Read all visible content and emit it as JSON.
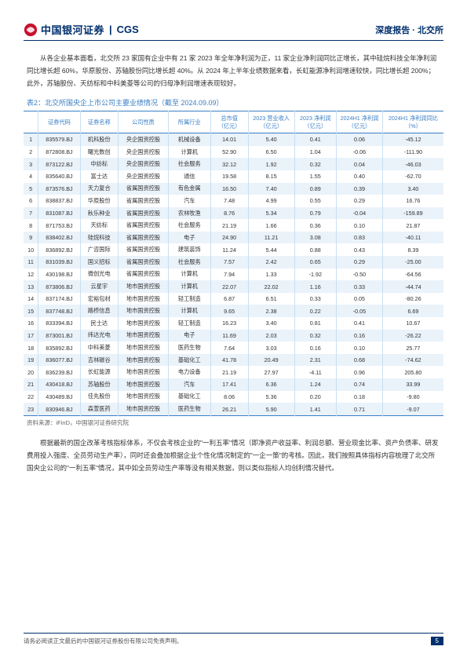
{
  "header": {
    "logo_cn": "中国银河证券",
    "logo_en": "CGS",
    "report_type": "深度报告",
    "sep": "·",
    "section": "北交所"
  },
  "paragraphs": {
    "intro": "从各企业基本面看，北交所 23 家国有企业中有 21 家 2023 年全年净利润为正，11 家企业净利润同比正增长，其中硅烷科技全年净利润同比增长超 60%，华原股份、苏轴股份同比增长超 40%。从 2024 年上半年业绩数据来看，长虹能源净利润增速较快，同比增长超 200%；此外，苏轴股份、天纺标和中科美菱等公司的归母净利润增速表现较好。",
    "post": "根据最新的国企改革考核指标体系，不仅会考核企业的\"一利五率\"情况（即净资产收益率、利润总额、营业现金比率、资产负债率、研发费用投入强度、全员劳动生产率），同时还会叠加根据企业个性化情况制定的\"一企一策\"的考核。因此，我们按照具体指标内容梳理了北交所国央企公司的\"一利五率\"情况，其中如全员劳动生产率等没有相关数据，则以类似指标人均创利情况替代。"
  },
  "table": {
    "caption": "表2：北交所国央企上市公司主要业绩情况（截至 2024.09.09）",
    "source": "资料来源：iFinD，中国银河证券研究院",
    "columns": [
      "",
      "证券代码",
      "证券名称",
      "公司性质",
      "所属行业",
      "总市值（亿元）",
      "2023 营业收入（亿元）",
      "2023 净利润（亿元）",
      "2024H1 净利润（亿元）",
      "2024H1 净利润同比（%）"
    ],
    "rows": [
      [
        "1",
        "835579.BJ",
        "机科股份",
        "央企国资控股",
        "机械设备",
        "14.01",
        "5.40",
        "0.41",
        "0.06",
        "-45.12"
      ],
      [
        "2",
        "872808.BJ",
        "曙光数创",
        "央企国资控股",
        "计算机",
        "52.90",
        "6.50",
        "1.04",
        "-0.06",
        "-111.90"
      ],
      [
        "3",
        "873122.BJ",
        "中纺标",
        "央企国资控股",
        "社会服务",
        "32.12",
        "1.92",
        "0.32",
        "0.04",
        "-46.03"
      ],
      [
        "4",
        "835640.BJ",
        "富士达",
        "央企国资控股",
        "通信",
        "19.58",
        "8.15",
        "1.55",
        "0.40",
        "-62.70"
      ],
      [
        "5",
        "873576.BJ",
        "天力复合",
        "省属国资控股",
        "有色金属",
        "16.50",
        "7.40",
        "0.89",
        "0.39",
        "3.40"
      ],
      [
        "6",
        "838837.BJ",
        "华原股份",
        "省属国资控股",
        "汽车",
        "7.48",
        "4.99",
        "0.55",
        "0.29",
        "16.76"
      ],
      [
        "7",
        "831087.BJ",
        "秋乐种业",
        "省属国资控股",
        "农林牧渔",
        "8.76",
        "5.34",
        "0.79",
        "-0.04",
        "-159.89"
      ],
      [
        "8",
        "871753.BJ",
        "天纺标",
        "省属国资控股",
        "社会服务",
        "21.19",
        "1.66",
        "0.36",
        "0.10",
        "21.87"
      ],
      [
        "9",
        "838402.BJ",
        "硅烷科技",
        "省属国资控股",
        "电子",
        "24.90",
        "11.21",
        "3.08",
        "0.83",
        "-40.11"
      ],
      [
        "10",
        "836892.BJ",
        "广咨国际",
        "省属国资控股",
        "建筑装饰",
        "11.24",
        "5.44",
        "0.88",
        "0.43",
        "8.39"
      ],
      [
        "11",
        "831039.BJ",
        "国义招标",
        "省属国资控股",
        "社会服务",
        "7.57",
        "2.42",
        "0.65",
        "0.29",
        "-25.00"
      ],
      [
        "12",
        "430198.BJ",
        "微创光电",
        "省属国资控股",
        "计算机",
        "7.94",
        "1.33",
        "-1.92",
        "-0.50",
        "-64.56"
      ],
      [
        "13",
        "873806.BJ",
        "云星宇",
        "地市国资控股",
        "计算机",
        "22.07",
        "22.02",
        "1.16",
        "0.33",
        "-44.74"
      ],
      [
        "14",
        "837174.BJ",
        "宏裕包材",
        "地市国资控股",
        "轻工制造",
        "6.87",
        "6.51",
        "0.33",
        "0.05",
        "-80.26"
      ],
      [
        "15",
        "837748.BJ",
        "路桥信息",
        "地市国资控股",
        "计算机",
        "9.65",
        "2.38",
        "0.22",
        "-0.05",
        "6.69"
      ],
      [
        "16",
        "833394.BJ",
        "民士达",
        "地市国资控股",
        "轻工制造",
        "16.23",
        "3.40",
        "0.81",
        "0.41",
        "10.67"
      ],
      [
        "17",
        "873001.BJ",
        "纬达光电",
        "地市国资控股",
        "电子",
        "11.69",
        "2.03",
        "0.32",
        "0.16",
        "-26.22"
      ],
      [
        "18",
        "835892.BJ",
        "中科美菱",
        "地市国资控股",
        "医药生物",
        "7.64",
        "3.03",
        "0.16",
        "0.10",
        "25.77"
      ],
      [
        "19",
        "836077.BJ",
        "吉林碳谷",
        "地市国资控股",
        "基础化工",
        "41.78",
        "20.49",
        "2.31",
        "0.68",
        "-74.62"
      ],
      [
        "20",
        "836239.BJ",
        "长虹能源",
        "地市国资控股",
        "电力设备",
        "21.19",
        "27.97",
        "-4.11",
        "0.96",
        "205.80"
      ],
      [
        "21",
        "430418.BJ",
        "苏轴股份",
        "地市国资控股",
        "汽车",
        "17.41",
        "6.36",
        "1.24",
        "0.74",
        "33.99"
      ],
      [
        "22",
        "430489.BJ",
        "佳先股份",
        "地市国资控股",
        "基础化工",
        "8.06",
        "5.36",
        "0.20",
        "0.18",
        "-9.80"
      ],
      [
        "23",
        "830946.BJ",
        "森萱医药",
        "地市国资控股",
        "医药生物",
        "26.21",
        "5.90",
        "1.41",
        "0.71",
        "-9.07"
      ]
    ],
    "col_widths": [
      "3.5%",
      "10%",
      "9%",
      "12%",
      "10%",
      "9%",
      "11%",
      "10%",
      "11%",
      "14.5%"
    ]
  },
  "footer": {
    "disclaimer": "请务必阅读正文最后的中国银河证券股份有限公司免责声明。",
    "page": "5"
  }
}
